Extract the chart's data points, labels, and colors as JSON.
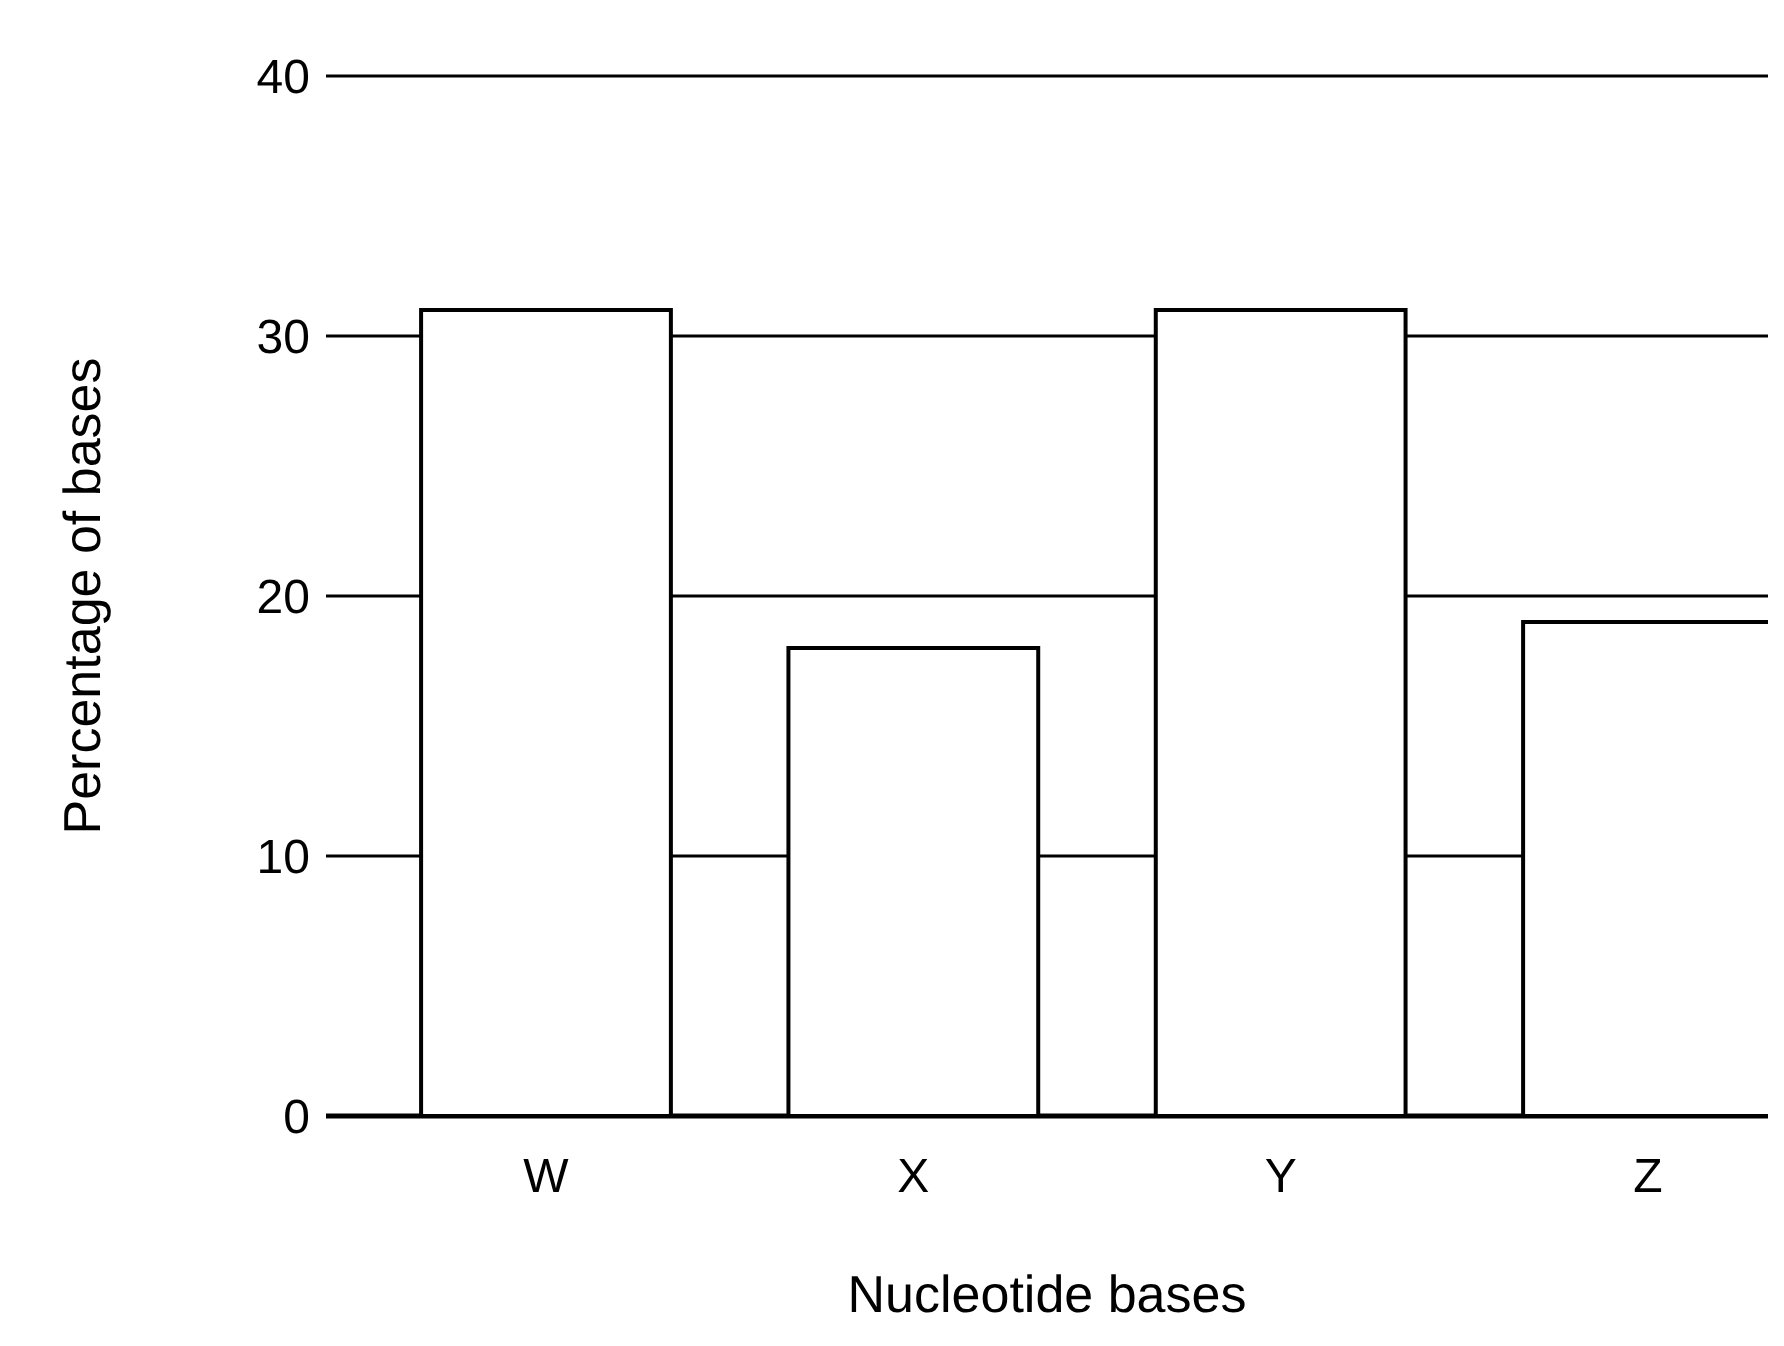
{
  "chart_data": {
    "type": "bar",
    "xlabel": "Nucleotide bases",
    "ylabel": "Percentage of bases",
    "categories": [
      "W",
      "X",
      "Y",
      "Z"
    ],
    "values": [
      31,
      18,
      31,
      19
    ],
    "color": "#ffffff",
    "ylim": [
      0,
      40
    ],
    "yticks": [
      0,
      10,
      20,
      30,
      40
    ],
    "grid": "y"
  }
}
